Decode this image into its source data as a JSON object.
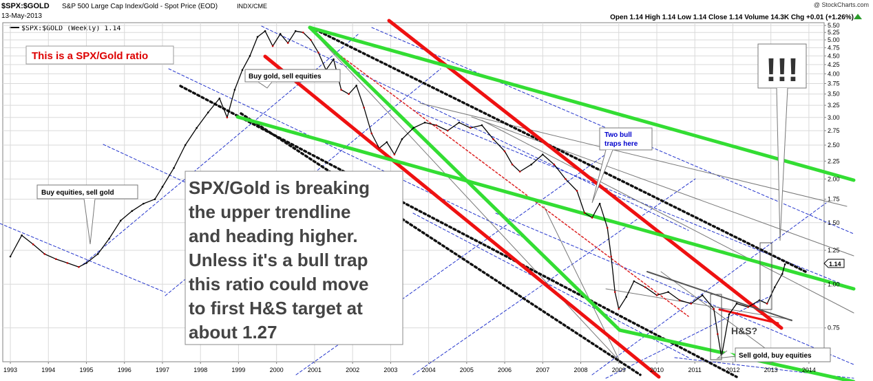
{
  "header": {
    "symbol": "$SPX:$GOLD",
    "description": "S&P 500 Large Cap Index/Gold - Spot Price (EOD)",
    "exchange": "INDX/CME",
    "date": "13-May-2013",
    "watermark": "@ StockCharts.com",
    "ohlc": "Open 1.14  High 1.14  Low 1.14  Close 1.14  Volume 14.3K  Chg +0.01 (+1.26%)",
    "legend": "$SPX:$GOLD (Weekly) 1.14"
  },
  "colors": {
    "price": "#000000",
    "price_down": "#c00000",
    "grid": "#d9d9d9",
    "green": "#33dd33",
    "red": "#ee1111",
    "blue_dashed": "#2233cc",
    "title_text": "#dd0000",
    "note_text": "#444444",
    "callout_blue": "#0000cc"
  },
  "annotations": {
    "title_box": "This is a SPX/Gold ratio",
    "main_note": [
      "SPX/Gold is breaking",
      "the upper trendline",
      "and heading higher.",
      "Unless it's a bull trap",
      "this ratio could move",
      "to first H&S target at",
      "about 1.27"
    ],
    "callout_buy_gold": "Buy gold, sell equities",
    "callout_buy_equities": "Buy equities, sell gold",
    "callout_sell_gold": "Sell gold, buy equities",
    "callout_bull_traps": [
      "Two bull",
      "traps here"
    ],
    "exclaim": "!!!",
    "hs_label": "H&S?",
    "last_value": "1.14"
  },
  "chart_data": {
    "type": "line",
    "title": "$SPX:$GOLD",
    "scale": "log",
    "ylim": [
      0.6,
      5.6
    ],
    "yticks": [
      0.75,
      1.0,
      1.25,
      1.5,
      1.75,
      2.0,
      2.25,
      2.5,
      2.75,
      3.0,
      3.25,
      3.5,
      3.75,
      4.0,
      4.25,
      4.5,
      4.75,
      5.0,
      5.25,
      5.5
    ],
    "ytick_labels": [
      "0.75",
      "1.00",
      "1.25",
      "1.50",
      "1.75",
      "2.00",
      "2.25",
      "2.50",
      "2.75",
      "3.00",
      "3.25",
      "3.50",
      "3.75",
      "4.00",
      "4.25",
      "4.50",
      "4.75",
      "5.00",
      "5.25",
      "5.50"
    ],
    "xlim": [
      1992.8,
      2014.4
    ],
    "xticks": [
      1993,
      1994,
      1995,
      1996,
      1997,
      1998,
      1999,
      2000,
      2001,
      2002,
      2003,
      2004,
      2005,
      2006,
      2007,
      2008,
      2009,
      2010,
      2011,
      2012,
      2013,
      2014
    ],
    "xtick_labels": [
      "1993",
      "1994",
      "1995",
      "1996",
      "1997",
      "1998",
      "1999",
      "2000",
      "2001",
      "2002",
      "2003",
      "2004",
      "2005",
      "2006",
      "2007",
      "2008",
      "2009",
      "2010",
      "2011",
      "2012",
      "2013",
      "2014"
    ],
    "grid": true,
    "series": [
      {
        "x": [
          1993.0,
          1993.3,
          1993.6,
          1993.9,
          1994.2,
          1994.5,
          1994.8,
          1995.0,
          1995.3,
          1995.6,
          1995.9,
          1996.2,
          1996.5,
          1996.8,
          1997.0,
          1997.3,
          1997.6,
          1997.9,
          1998.2,
          1998.5,
          1998.7,
          1998.9,
          1999.1,
          1999.3,
          1999.5,
          1999.7,
          1999.9,
          2000.1,
          2000.3,
          2000.5,
          2000.7,
          2000.9,
          2001.1,
          2001.3,
          2001.5,
          2001.7,
          2001.9,
          2002.1,
          2002.3,
          2002.5,
          2002.7,
          2002.9,
          2003.1,
          2003.3,
          2003.6,
          2003.9,
          2004.2,
          2004.5,
          2004.8,
          2005.1,
          2005.4,
          2005.7,
          2006.0,
          2006.2,
          2006.4,
          2006.7,
          2007.0,
          2007.3,
          2007.6,
          2007.9,
          2008.1,
          2008.3,
          2008.5,
          2008.7,
          2008.8,
          2008.9,
          2009.0,
          2009.2,
          2009.4,
          2009.7,
          2010.0,
          2010.3,
          2010.6,
          2010.9,
          2011.2,
          2011.5,
          2011.6,
          2011.7,
          2011.9,
          2012.1,
          2012.4,
          2012.7,
          2012.9,
          2013.1,
          2013.3,
          2013.37
        ],
        "values": [
          1.2,
          1.38,
          1.3,
          1.22,
          1.18,
          1.15,
          1.12,
          1.15,
          1.22,
          1.35,
          1.52,
          1.62,
          1.7,
          1.75,
          1.9,
          2.15,
          2.5,
          2.8,
          3.1,
          3.4,
          3.0,
          3.6,
          4.1,
          4.5,
          5.1,
          5.3,
          4.8,
          5.2,
          4.9,
          5.3,
          5.25,
          5.0,
          4.6,
          4.1,
          4.4,
          3.6,
          3.5,
          3.7,
          3.2,
          2.7,
          2.45,
          2.55,
          2.35,
          2.6,
          2.8,
          2.9,
          2.85,
          2.75,
          2.9,
          2.8,
          2.85,
          2.6,
          2.4,
          2.2,
          2.1,
          2.2,
          2.35,
          2.2,
          2.0,
          1.85,
          1.6,
          1.55,
          1.7,
          1.45,
          1.2,
          0.95,
          0.85,
          0.92,
          1.02,
          0.98,
          0.93,
          0.95,
          0.9,
          0.88,
          0.93,
          0.85,
          0.72,
          0.62,
          0.82,
          0.88,
          0.86,
          0.9,
          0.88,
          0.98,
          1.07,
          1.14
        ]
      }
    ]
  }
}
